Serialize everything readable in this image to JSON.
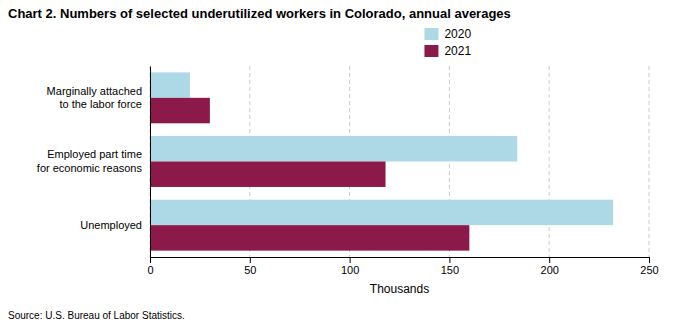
{
  "chart_data": {
    "type": "bar",
    "orientation": "horizontal",
    "title": "Chart 2.  Numbers of selected underutilized workers in Colorado, annual averages",
    "categories": [
      "Unemployed",
      "Employed part time\nfor economic reasons",
      "Marginally attached\nto the labor force"
    ],
    "series": [
      {
        "name": "2020",
        "color": "#add8e6",
        "values": [
          232,
          184,
          20
        ]
      },
      {
        "name": "2021",
        "color": "#8b1a4a",
        "values": [
          160,
          118,
          30
        ]
      }
    ],
    "xlabel": "Thousands",
    "xlim": [
      0,
      250
    ],
    "xticks": [
      0,
      50,
      100,
      150,
      200,
      250
    ],
    "grid": true,
    "legend": "top",
    "annotations": [
      "Source: U.S. Bureau of Labor Statistics."
    ]
  }
}
